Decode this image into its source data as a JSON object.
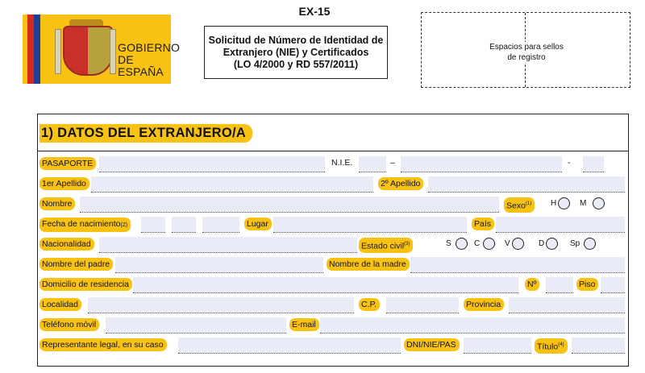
{
  "header": {
    "form_code": "EX-15",
    "title_lines": [
      "Solicitud de Número de Identidad de",
      "Extranjero (NIE) y Certificados",
      "(LO 4/2000 y RD 557/2011)"
    ],
    "logo_text_lines": [
      "GOBIERNO",
      "DE ESPAÑA"
    ],
    "stamp_lines": [
      "Espacios para sellos",
      "de registro"
    ]
  },
  "section": {
    "title": "1)  DATOS DEL EXTRANJERO/A"
  },
  "fields": {
    "pasaporte": "PASAPORTE",
    "nie": "N.I.E.",
    "nie_sep1": "–",
    "nie_sep2": "-",
    "apellido1": "1er Apellido",
    "apellido2": "2º Apellido",
    "nombre": "Nombre",
    "sexo": "Sexo",
    "sexo_note": "(1)",
    "sexo_h": "H",
    "sexo_m": "M",
    "fecha_nac": "Fecha de nacimiento",
    "fecha_note": "(2)",
    "lugar": "Lugar",
    "pais": "País",
    "nacionalidad": "Nacionalidad",
    "estado_civil": "Estado civil",
    "estado_note": "(3)",
    "ec_s": "S",
    "ec_c": "C",
    "ec_v": "V",
    "ec_d": "D",
    "ec_sp": "Sp",
    "padre": "Nombre del padre",
    "madre": "Nombre de la madre",
    "domicilio": "Domicilio de residencia",
    "numero": "Nº",
    "piso": "Piso",
    "localidad": "Localidad",
    "cp": "C.P.",
    "provincia": "Provincia",
    "telefono": "Teléfono móvil",
    "email": "E-mail",
    "representante": "Representante legal, en su caso",
    "dni": "DNI/NIE/PAS",
    "titulo": "Título",
    "titulo_note": "(4)"
  },
  "colors": {
    "label_bg": "#f8c215",
    "field_bg": "#e9ecf6",
    "flag_red": "#d52b1e"
  }
}
